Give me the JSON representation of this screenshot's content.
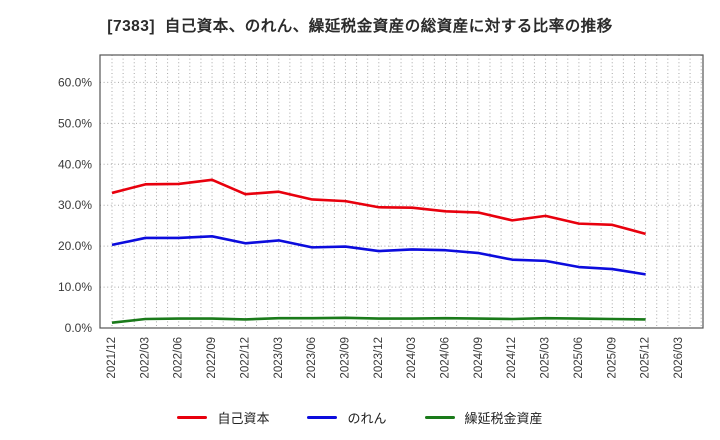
{
  "title": "[7383]  自己資本、のれん、繰延税金資産の総資産に対する比率の推移",
  "chart_data": {
    "type": "line",
    "title": "[7383]  自己資本、のれん、繰延税金資産の総資産に対する比率の推移",
    "x_labels": [
      "2021/12",
      "2022/03",
      "2022/06",
      "2022/09",
      "2022/12",
      "2023/03",
      "2023/06",
      "2023/09",
      "2023/12",
      "2024/03",
      "2024/06",
      "2024/09",
      "2024/12",
      "2025/03",
      "2025/06",
      "2025/09",
      "2025/12",
      "2026/03"
    ],
    "y_tick_labels": [
      "0.0%",
      "10.0%",
      "20.0%",
      "30.0%",
      "40.0%",
      "50.0%",
      "60.0%"
    ],
    "y_tick_values": [
      0,
      10,
      20,
      30,
      40,
      50,
      60
    ],
    "ylim": [
      0,
      66.7
    ],
    "grid": "dotted",
    "x_minor_gridlines_per_label": 3,
    "legend_position": "bottom",
    "series": [
      {
        "id": "equity",
        "name": "自己資本",
        "color": "#e8000d",
        "values": [
          33.0,
          35.1,
          35.2,
          36.2,
          32.7,
          33.3,
          31.4,
          31.0,
          29.5,
          29.4,
          28.5,
          28.2,
          26.3,
          27.4,
          25.5,
          25.2,
          23.0
        ]
      },
      {
        "id": "goodwill",
        "name": "のれん",
        "color": "#0c0cdd",
        "values": [
          20.3,
          22.0,
          22.0,
          22.4,
          20.7,
          21.4,
          19.7,
          19.9,
          18.8,
          19.2,
          19.0,
          18.3,
          16.7,
          16.4,
          14.9,
          14.4,
          13.1
        ]
      },
      {
        "id": "deferred-tax-assets",
        "name": "繰延税金資産",
        "color": "#1a7a1a",
        "values": [
          1.3,
          2.2,
          2.3,
          2.3,
          2.1,
          2.4,
          2.4,
          2.5,
          2.3,
          2.3,
          2.4,
          2.3,
          2.2,
          2.4,
          2.3,
          2.2,
          2.1
        ]
      }
    ]
  }
}
